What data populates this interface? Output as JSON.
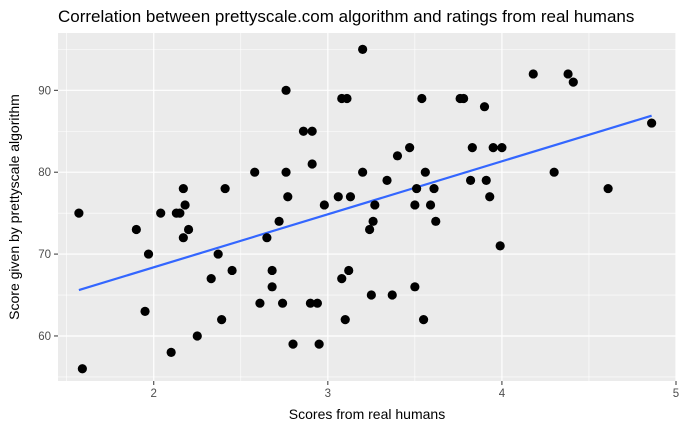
{
  "chart_data": {
    "type": "scatter",
    "title": "Correlation between prettyscale.com algorithm and ratings from real humans",
    "xlabel": "Scores from real humans",
    "ylabel": "Score given by prettyscale algorithm",
    "xlim": [
      1.45,
      5.0
    ],
    "ylim": [
      54.5,
      97.0
    ],
    "x_ticks": [
      2,
      3,
      4,
      5
    ],
    "y_ticks": [
      60,
      70,
      80,
      90
    ],
    "grid": true,
    "legend": "none",
    "points": [
      [
        1.57,
        75
      ],
      [
        1.59,
        56
      ],
      [
        1.9,
        73
      ],
      [
        1.95,
        63
      ],
      [
        1.97,
        70
      ],
      [
        2.04,
        75
      ],
      [
        2.1,
        58
      ],
      [
        2.13,
        75
      ],
      [
        2.15,
        75
      ],
      [
        2.17,
        78
      ],
      [
        2.17,
        72
      ],
      [
        2.18,
        76
      ],
      [
        2.2,
        73
      ],
      [
        2.25,
        60
      ],
      [
        2.33,
        67
      ],
      [
        2.37,
        70
      ],
      [
        2.39,
        62
      ],
      [
        2.41,
        78
      ],
      [
        2.45,
        68
      ],
      [
        2.58,
        80
      ],
      [
        2.61,
        64
      ],
      [
        2.65,
        72
      ],
      [
        2.68,
        68
      ],
      [
        2.68,
        66
      ],
      [
        2.72,
        74
      ],
      [
        2.74,
        64
      ],
      [
        2.76,
        80
      ],
      [
        2.76,
        90
      ],
      [
        2.77,
        77
      ],
      [
        2.8,
        59
      ],
      [
        2.86,
        85
      ],
      [
        2.9,
        64
      ],
      [
        2.91,
        81
      ],
      [
        2.91,
        85
      ],
      [
        2.94,
        64
      ],
      [
        2.95,
        59
      ],
      [
        2.98,
        76
      ],
      [
        3.06,
        77
      ],
      [
        3.08,
        89
      ],
      [
        3.08,
        67
      ],
      [
        3.1,
        62
      ],
      [
        3.11,
        89
      ],
      [
        3.12,
        68
      ],
      [
        3.13,
        77
      ],
      [
        3.2,
        95
      ],
      [
        3.2,
        80
      ],
      [
        3.24,
        73
      ],
      [
        3.25,
        65
      ],
      [
        3.26,
        74
      ],
      [
        3.27,
        76
      ],
      [
        3.34,
        79
      ],
      [
        3.37,
        65
      ],
      [
        3.4,
        82
      ],
      [
        3.47,
        83
      ],
      [
        3.5,
        66
      ],
      [
        3.5,
        76
      ],
      [
        3.51,
        78
      ],
      [
        3.54,
        89
      ],
      [
        3.55,
        62
      ],
      [
        3.56,
        80
      ],
      [
        3.59,
        76
      ],
      [
        3.61,
        78
      ],
      [
        3.62,
        74
      ],
      [
        3.76,
        89
      ],
      [
        3.78,
        89
      ],
      [
        3.82,
        79
      ],
      [
        3.83,
        83
      ],
      [
        3.9,
        88
      ],
      [
        3.91,
        79
      ],
      [
        3.93,
        77
      ],
      [
        3.95,
        83
      ],
      [
        3.99,
        71
      ],
      [
        4.0,
        83
      ],
      [
        4.18,
        92
      ],
      [
        4.3,
        80
      ],
      [
        4.38,
        92
      ],
      [
        4.41,
        91
      ],
      [
        4.61,
        78
      ],
      [
        4.86,
        86
      ]
    ],
    "trendline": {
      "method": "linear fit",
      "x": [
        1.57,
        4.86
      ],
      "y": [
        65.6,
        86.9
      ]
    },
    "colors": {
      "panel_background": "#ebebeb",
      "grid_major": "#ffffff",
      "point": "#000000",
      "trendline": "#3366ff"
    }
  }
}
